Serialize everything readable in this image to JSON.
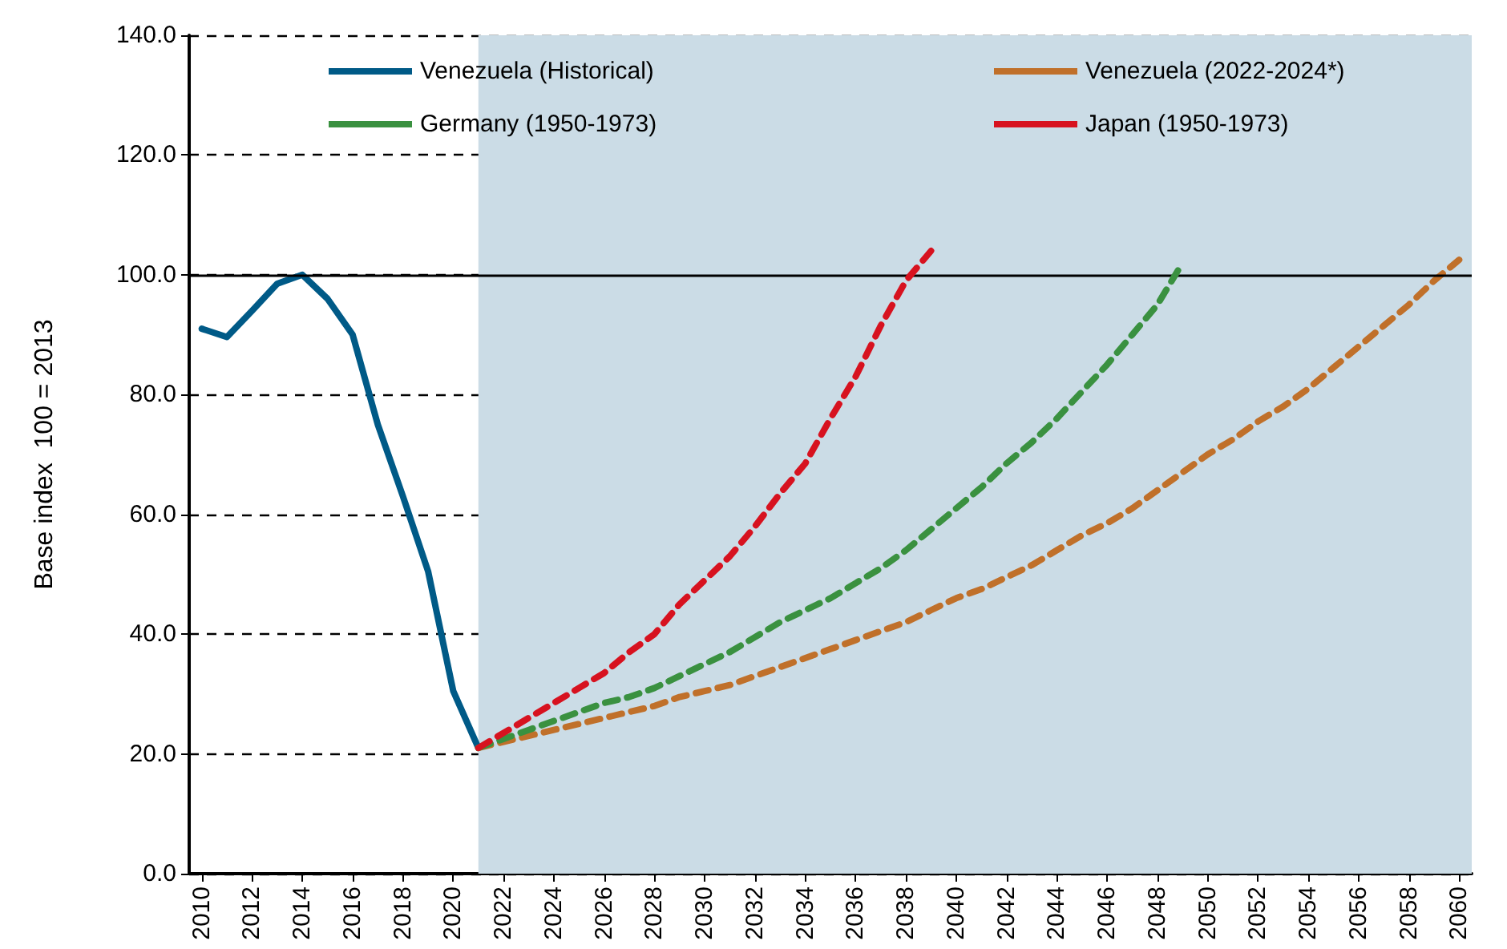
{
  "chart_data": {
    "type": "line",
    "ylabel": "Base index  100 = 2013",
    "xlim": [
      2009.5,
      2060.5
    ],
    "xticks": [
      2010,
      2012,
      2014,
      2016,
      2018,
      2020,
      2022,
      2024,
      2026,
      2028,
      2030,
      2032,
      2034,
      2036,
      2038,
      2040,
      2042,
      2044,
      2046,
      2048,
      2050,
      2052,
      2054,
      2056,
      2058,
      2060
    ],
    "ylim": [
      0,
      140
    ],
    "yticks": [
      {
        "value": 0,
        "label": "0.0"
      },
      {
        "value": 20,
        "label": "20.0"
      },
      {
        "value": 40,
        "label": "40.0"
      },
      {
        "value": 60,
        "label": "60.0"
      },
      {
        "value": 80,
        "label": "80.0"
      },
      {
        "value": 100,
        "label": "100.0"
      },
      {
        "value": 120,
        "label": "120.0"
      },
      {
        "value": 140,
        "label": "140.0"
      }
    ],
    "grid": "y",
    "legend": "top",
    "marker": "none",
    "bands": [
      {
        "axis": "x",
        "from": 2021,
        "to": 2060.5,
        "color": "#cbdce6"
      }
    ],
    "ref_lines": [
      {
        "axis": "y",
        "value": 100,
        "color": "#000000",
        "line_style": "solid"
      }
    ],
    "series": [
      {
        "name": "Venezuela (Historical)",
        "color": "#005a87",
        "line_style": "solid",
        "x": [
          2010,
          2011,
          2012,
          2013,
          2014,
          2015,
          2016,
          2017,
          2018,
          2019,
          2020,
          2021
        ],
        "values": [
          91,
          89.6,
          94,
          98.5,
          100,
          96,
          90,
          75,
          63,
          50.5,
          30.5,
          21
        ]
      },
      {
        "name": "Venezuela (2022-2024*)",
        "color": "#c0702a",
        "line_style": "dashed",
        "x": [
          2021,
          2022,
          2023,
          2024,
          2025,
          2026,
          2027,
          2028,
          2029,
          2030,
          2031,
          2032,
          2033,
          2034,
          2035,
          2036,
          2037,
          2038,
          2039,
          2040,
          2041,
          2042,
          2043,
          2044,
          2045,
          2046,
          2047,
          2048,
          2049,
          2050,
          2051,
          2052,
          2053,
          2054,
          2055,
          2056,
          2057,
          2058,
          2059,
          2060
        ],
        "values": [
          21,
          22,
          23,
          24,
          25,
          26,
          27,
          28,
          29.5,
          30.5,
          31.5,
          33,
          34.5,
          36,
          37.5,
          39,
          40.5,
          42,
          44,
          46,
          47.5,
          49.5,
          51.5,
          54,
          56.5,
          58.5,
          61,
          64,
          67,
          70,
          72.5,
          75.5,
          78,
          81,
          84.5,
          88,
          91.5,
          95,
          99,
          102.5
        ]
      },
      {
        "name": "Germany (1950-1973)",
        "color": "#3a9140",
        "line_style": "dashed",
        "x": [
          2021,
          2022,
          2023,
          2024,
          2025,
          2026,
          2027,
          2028,
          2029,
          2030,
          2031,
          2032,
          2033,
          2034,
          2035,
          2036,
          2037,
          2038,
          2039,
          2040,
          2041,
          2042,
          2043,
          2044,
          2045,
          2046,
          2047,
          2048,
          2049
        ],
        "values": [
          21,
          22.5,
          24,
          25.5,
          27,
          28.5,
          29.5,
          31,
          33,
          35,
          37,
          39.5,
          42,
          44,
          46,
          48.5,
          51,
          54,
          57.5,
          61,
          64.5,
          68.5,
          72,
          76,
          80.5,
          85,
          90,
          95,
          102
        ]
      },
      {
        "name": "Japan (1950-1973)",
        "color": "#d7121f",
        "line_style": "dashed",
        "x": [
          2021,
          2022,
          2023,
          2024,
          2025,
          2026,
          2027,
          2028,
          2029,
          2030,
          2031,
          2032,
          2033,
          2034,
          2035,
          2036,
          2037,
          2038,
          2039
        ],
        "values": [
          21,
          23.5,
          26,
          28.5,
          31,
          33.5,
          37,
          40,
          45,
          49,
          53,
          58,
          63.5,
          68.5,
          76,
          83,
          91.5,
          99,
          104
        ]
      }
    ]
  }
}
